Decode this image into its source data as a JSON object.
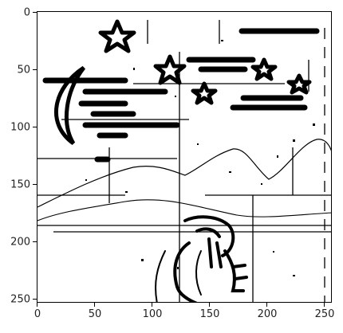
{
  "figure": {
    "x_ticks": [
      "0",
      "50",
      "100",
      "150",
      "200",
      "250"
    ],
    "y_ticks": [
      "0",
      "50",
      "100",
      "150",
      "200",
      "250"
    ]
  },
  "image": {
    "description_icon": "binarized-ink-drawing",
    "colors": {
      "ink": "#000000",
      "paper": "#ffffff"
    }
  }
}
